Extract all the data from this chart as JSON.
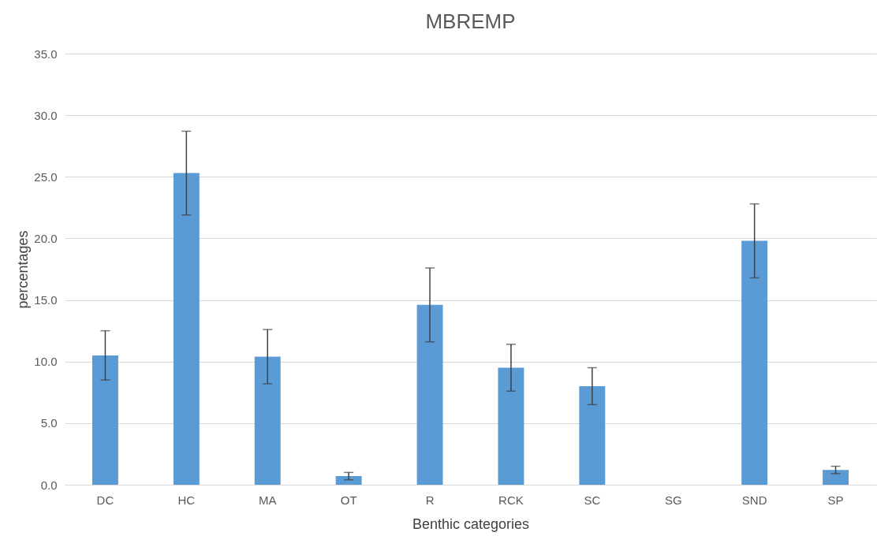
{
  "chart_data": {
    "type": "bar",
    "title": "MBREMP",
    "xlabel": "Benthic categories",
    "ylabel": "percentages",
    "categories": [
      "DC",
      "HC",
      "MA",
      "OT",
      "R",
      "RCK",
      "SC",
      "SG",
      "SND",
      "SP"
    ],
    "values": [
      10.5,
      25.3,
      10.4,
      0.7,
      14.6,
      9.5,
      8.0,
      0.0,
      19.8,
      1.2
    ],
    "errors": [
      2.0,
      3.4,
      2.2,
      0.3,
      3.0,
      1.9,
      1.5,
      null,
      3.0,
      0.3
    ],
    "color": "#5b9bd5",
    "ylim": [
      0,
      35
    ],
    "yticks": [
      {
        "value": 0,
        "label": "0.0"
      },
      {
        "value": 5,
        "label": "5.0"
      },
      {
        "value": 10,
        "label": "10.0"
      },
      {
        "value": 15,
        "label": "15.0"
      },
      {
        "value": 20,
        "label": "20.0"
      },
      {
        "value": 25,
        "label": "25.0"
      },
      {
        "value": 30,
        "label": "30.0"
      },
      {
        "value": 35,
        "label": "35.0"
      }
    ],
    "grid": "y"
  }
}
